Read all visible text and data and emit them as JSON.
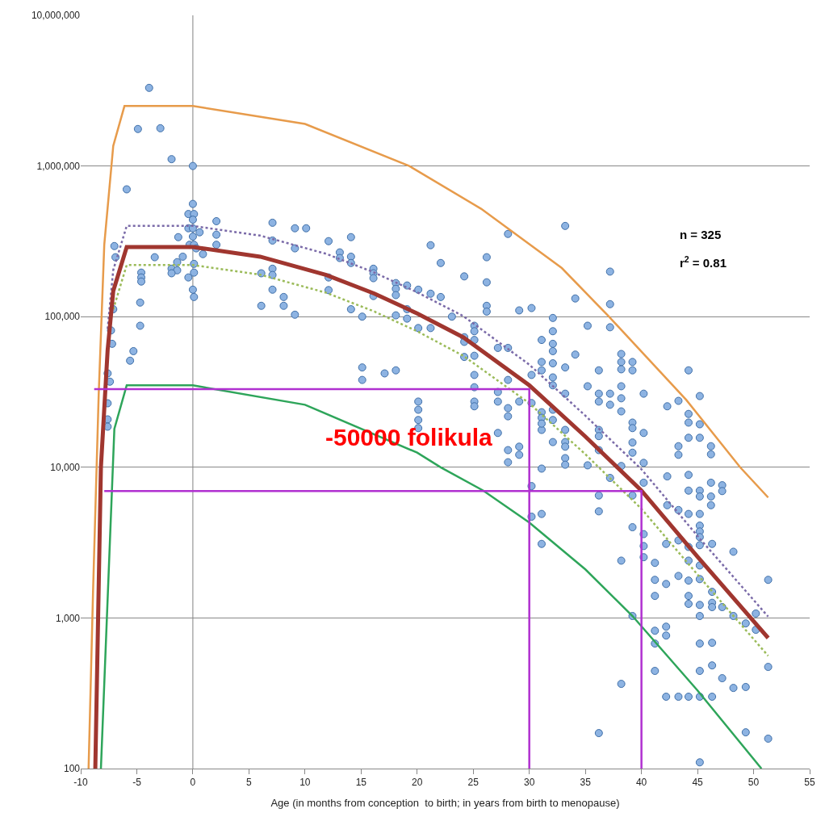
{
  "chart_data": {
    "type": "scatter",
    "xlabel": "Age (in months from conception  to birth; in years from birth to menopause)",
    "xlim": [
      -10,
      55
    ],
    "xticks": [
      -10,
      -5,
      0,
      5,
      10,
      15,
      20,
      25,
      30,
      35,
      40,
      45,
      50,
      55
    ],
    "ylim": [
      100,
      10000000
    ],
    "log": "y",
    "yticks": [
      {
        "value": 100,
        "label": "100"
      },
      {
        "value": 1000,
        "label": "1,000"
      },
      {
        "value": 10000,
        "label": "10,000"
      },
      {
        "value": 100000,
        "label": "100,000"
      },
      {
        "value": 1000000,
        "label": "1,000,000"
      },
      {
        "value": 10000000,
        "label": "10,000,000"
      }
    ],
    "grid": "y",
    "ref_lines": [
      {
        "axis": "x",
        "value": 0,
        "color": "#808080"
      }
    ],
    "annotations": [
      "n = 325",
      "r$^{2}$ = 0.81",
      "-50000 folikula"
    ],
    "series": [
      {
        "marker": "circle",
        "color": "#8db3e2",
        "x": [
          -7.1,
          -7.3,
          -7.2,
          -7.6,
          -7.4,
          -7.6,
          -7.6,
          -7.6,
          -3.9,
          -4.9,
          -2.9,
          -1.9,
          0,
          -5.9,
          0,
          -0.4,
          0.1,
          0,
          2.1,
          7.1,
          9.1,
          10.1,
          -0.4,
          0,
          0.6,
          -1.3,
          2.1,
          0,
          7.1,
          -7.0,
          -0.3,
          0.1,
          2.1,
          9.1,
          0.3,
          -6.9,
          -3.4,
          -0.9,
          0.9,
          -1.4,
          0.1,
          -1.9,
          -1.4,
          -4.6,
          -4.6,
          -4.6,
          -1.9,
          6.1,
          7.1,
          7.1,
          -0.4,
          0.1,
          7.1,
          0,
          0.1,
          8.1,
          6.1,
          8.1,
          9.1,
          -4.7,
          -4.7,
          -5.3,
          -5.6,
          12.1,
          14.1,
          13.1,
          13.1,
          14.1,
          14.1,
          21.2,
          22.1,
          26.2,
          16.1,
          16.1,
          16.1,
          12.1,
          12.1,
          16.1,
          18.1,
          18.1,
          18.1,
          19.1,
          20.1,
          21.2,
          22.1,
          24.2,
          26.2,
          26.2,
          26.2,
          28.1,
          29.1,
          30.2,
          33.2,
          34.1,
          14.1,
          15.1,
          18.1,
          19.1,
          19.1,
          20.1,
          21.2,
          23.1,
          25.1,
          25.1,
          25.1,
          24.2,
          24.2,
          24.2,
          25.1,
          27.2,
          28.1,
          31.1,
          32.1,
          32.1,
          32.1,
          32.1,
          32.1,
          32.1,
          32.1,
          34.1,
          33.2,
          31.1,
          31.1,
          30.2,
          15.1,
          15.1,
          17.1,
          18.1,
          25.1,
          28.1,
          25.1,
          25.1,
          25.1,
          27.2,
          27.2,
          20.1,
          20.1,
          20.1,
          20.1,
          28.1,
          28.1,
          29.1,
          30.2,
          27.2,
          28.1,
          28.1,
          29.1,
          29.1,
          31.1,
          32.1,
          31.1,
          31.1,
          31.1,
          32.1,
          33.2,
          33.2,
          33.2,
          33.2,
          33.2,
          33.2,
          32.1,
          31.1,
          30.2,
          30.2,
          31.1,
          37.2,
          37.2,
          35.2,
          37.2,
          38.2,
          38.2,
          38.2,
          39.2,
          39.2,
          44.2,
          36.2,
          35.2,
          36.2,
          36.2,
          37.2,
          37.2,
          38.2,
          38.2,
          38.2,
          40.2,
          42.3,
          43.3,
          45.2,
          44.2,
          44.2,
          44.2,
          45.2,
          45.2,
          36.2,
          36.2,
          36.2,
          39.2,
          39.2,
          39.2,
          39.2,
          40.2,
          43.3,
          43.3,
          46.2,
          46.2,
          40.2,
          35.2,
          37.2,
          38.2,
          40.2,
          42.3,
          44.2,
          44.2,
          45.2,
          45.2,
          46.2,
          46.2,
          46.2,
          47.2,
          47.2,
          36.2,
          36.2,
          39.2,
          39.2,
          42.3,
          43.3,
          44.2,
          45.2,
          45.2,
          45.2,
          40.2,
          31.1,
          38.2,
          40.2,
          40.2,
          41.2,
          41.2,
          41.2,
          42.2,
          42.2,
          43.3,
          43.3,
          44.2,
          44.2,
          44.2,
          44.2,
          44.2,
          45.2,
          45.2,
          45.2,
          45.2,
          45.2,
          45.2,
          46.3,
          46.3,
          46.3,
          46.3,
          48.2,
          47.2,
          48.2,
          49.3,
          50.2,
          50.2,
          51.3,
          51.3,
          41.2,
          41.2,
          41.2,
          42.2,
          42.2,
          38.2,
          39.2,
          46.3,
          45.2,
          46.3,
          45.2,
          47.2,
          48.2,
          49.3,
          42.2,
          43.3,
          44.2,
          45.2,
          46.3,
          36.2,
          49.3,
          51.3,
          45.2
        ],
        "values": [
          112000,
          81000,
          66000,
          42000,
          37000,
          26600,
          20800,
          18600,
          3300000,
          1760000,
          1780000,
          1110000,
          1000000,
          700000,
          560000,
          480000,
          480000,
          440000,
          430000,
          420000,
          386000,
          386000,
          386000,
          386000,
          363000,
          337000,
          350000,
          340000,
          320000,
          294000,
          300000,
          300000,
          300000,
          284000,
          284000,
          248000,
          248000,
          250000,
          260000,
          230000,
          224000,
          208000,
          203000,
          196000,
          182000,
          171000,
          194000,
          194000,
          208000,
          189000,
          182000,
          196000,
          151000,
          151000,
          135000,
          135000,
          118000,
          118000,
          103000,
          124000,
          87000,
          59000,
          51000,
          317000,
          337000,
          267000,
          245000,
          250000,
          227000,
          298000,
          227000,
          248000,
          208000,
          194000,
          180000,
          182000,
          150000,
          137000,
          167000,
          153000,
          139000,
          161000,
          151000,
          142000,
          135000,
          185000,
          169000,
          118000,
          108000,
          354000,
          110000,
          114000,
          400000,
          132000,
          112000,
          100000,
          102000,
          112000,
          97000,
          84000,
          84000,
          100000,
          87000,
          80000,
          70000,
          73000,
          68000,
          54000,
          55000,
          62000,
          62000,
          70000,
          98000,
          80000,
          66000,
          59000,
          49000,
          39500,
          35000,
          56000,
          46000,
          50000,
          44000,
          41000,
          46000,
          38000,
          42000,
          44000,
          41000,
          38000,
          34000,
          27300,
          25400,
          31600,
          27300,
          27300,
          24100,
          20600,
          18200,
          24700,
          21800,
          27300,
          26700,
          16900,
          13000,
          10800,
          13700,
          12100,
          17700,
          24100,
          23200,
          21300,
          19500,
          20600,
          30800,
          17700,
          14700,
          13700,
          11500,
          10400,
          14700,
          9800,
          7500,
          4700,
          4900,
          199000,
          121000,
          87000,
          85000,
          56500,
          50000,
          44700,
          50000,
          44000,
          44000,
          44000,
          34500,
          30800,
          27300,
          30800,
          26000,
          34500,
          28700,
          23500,
          30800,
          25400,
          27600,
          29700,
          22600,
          19800,
          15700,
          19300,
          15700,
          17700,
          16100,
          13000,
          19800,
          18200,
          14600,
          12500,
          16900,
          13800,
          12100,
          13800,
          12200,
          10700,
          10300,
          8500,
          10200,
          7900,
          8700,
          8900,
          7000,
          7000,
          6400,
          7900,
          6400,
          5600,
          7600,
          6950,
          6500,
          5100,
          6500,
          4000,
          5600,
          5200,
          4900,
          4900,
          4100,
          3750,
          3600,
          3100,
          2400,
          3000,
          2530,
          2320,
          1790,
          1400,
          3100,
          1680,
          3270,
          1900,
          2960,
          2400,
          1770,
          1400,
          1240,
          3440,
          3040,
          2230,
          1810,
          1220,
          1030,
          3100,
          1490,
          1260,
          1180,
          2750,
          1180,
          1030,
          920,
          1070,
          834,
          1790,
          473,
          822,
          676,
          445,
          875,
          764,
          365,
          1030,
          684,
          676,
          484,
          445,
          398,
          343,
          348,
          300,
          300,
          300,
          300,
          300,
          172,
          174,
          158,
          110
        ]
      },
      {
        "type": "line",
        "color": "#e79b4b",
        "line_style": "solid",
        "marker": "none",
        "x": [
          -9.3,
          -8.9,
          -8.4,
          -7.9,
          -7.1,
          -6.1,
          0,
          10,
          19.3,
          25.7,
          32.9,
          37.1,
          44,
          48.8,
          51.3
        ],
        "values": [
          100,
          1500,
          30000,
          300000,
          1360000,
          2500000,
          2500000,
          1900000,
          1000000,
          520000,
          210000,
          100000,
          28000,
          10000,
          6300
        ]
      },
      {
        "type": "line",
        "color": "#7a6aa8",
        "line_style": "dotted",
        "marker": "none",
        "x": [
          -7.6,
          -7.1,
          -5.9,
          0,
          6,
          11.9,
          16.2,
          20,
          24.1,
          30,
          35,
          40,
          45,
          51.3
        ],
        "values": [
          83000,
          204000,
          400000,
          400000,
          345000,
          261000,
          196000,
          145000,
          101000,
          48000,
          22000,
          9700,
          3500,
          1020
        ]
      },
      {
        "type": "line",
        "color": "#9bbb59",
        "line_style": "dotted",
        "marker": "none",
        "x": [
          -7.1,
          -5.9,
          0,
          6,
          11.9,
          16.2,
          20,
          24.1,
          30,
          35,
          40,
          45,
          51.3
        ],
        "values": [
          112000,
          220000,
          220000,
          190000,
          144000,
          108000,
          80000,
          55000,
          26600,
          12200,
          5300,
          1940,
          560
        ]
      },
      {
        "type": "line",
        "color": "#a0362f",
        "line_style": "solid",
        "marker": "none",
        "x": [
          -8.7,
          -8.2,
          -7.6,
          -7.1,
          -5.9,
          0,
          6,
          11.9,
          16.2,
          20,
          24.1,
          30,
          35,
          40,
          45,
          51.3
        ],
        "values": [
          100,
          10000,
          60000,
          148000,
          290000,
          290000,
          250000,
          189000,
          142000,
          105000,
          73000,
          35000,
          16000,
          7000,
          2550,
          736
        ]
      },
      {
        "type": "line",
        "color": "#2ea55a",
        "line_style": "solid",
        "marker": "none",
        "x": [
          -8.2,
          -7,
          -5.9,
          0,
          10,
          20,
          22.1,
          25.9,
          30,
          35,
          39.2,
          45,
          50.7
        ],
        "values": [
          100,
          18000,
          35000,
          35000,
          26000,
          12500,
          10000,
          7000,
          4300,
          2100,
          1030,
          330,
          100
        ]
      },
      {
        "type": "line",
        "color": "#b030d0",
        "line_style": "solid",
        "marker": "none",
        "x": [
          -8.8,
          30,
          30
        ],
        "values": [
          33000,
          33000,
          100
        ]
      },
      {
        "type": "line",
        "color": "#b030d0",
        "line_style": "solid",
        "marker": "none",
        "x": [
          -7.9,
          40,
          40
        ],
        "values": [
          6950,
          6950,
          100
        ]
      }
    ]
  }
}
